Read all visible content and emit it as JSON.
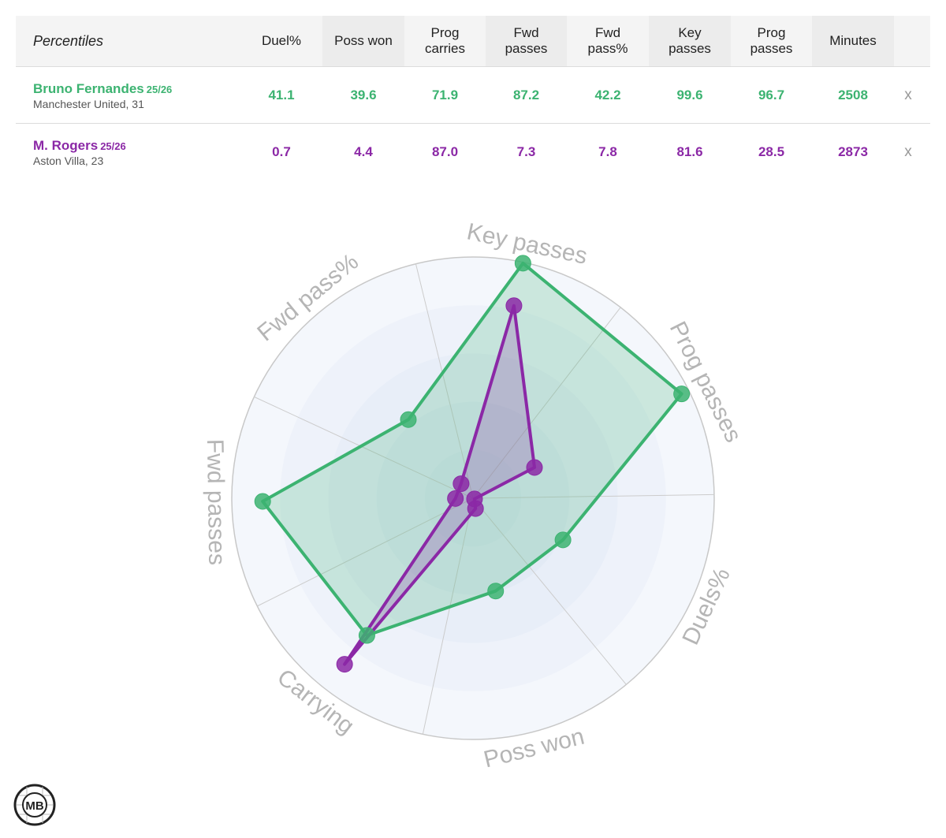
{
  "table": {
    "title": "Percentiles",
    "columns": [
      {
        "key": "duel",
        "lines": [
          "Duel%"
        ]
      },
      {
        "key": "poss_won",
        "lines": [
          "Poss won"
        ]
      },
      {
        "key": "prog_carries",
        "lines": [
          "Prog",
          "carries"
        ]
      },
      {
        "key": "fwd_passes",
        "lines": [
          "Fwd",
          "passes"
        ]
      },
      {
        "key": "fwd_pass_pct",
        "lines": [
          "Fwd",
          "pass%"
        ]
      },
      {
        "key": "key_passes",
        "lines": [
          "Key",
          "passes"
        ]
      },
      {
        "key": "prog_passes",
        "lines": [
          "Prog",
          "passes"
        ]
      },
      {
        "key": "minutes",
        "lines": [
          "Minutes"
        ]
      }
    ],
    "remove_label": "x",
    "players": [
      {
        "name": "Bruno Fernandes",
        "season": "25/26",
        "club_age": "Manchester United, 31",
        "color": "#3cb371",
        "values": [
          "41.1",
          "39.6",
          "71.9",
          "87.2",
          "42.2",
          "99.6",
          "96.7",
          "2508"
        ]
      },
      {
        "name": "M. Rogers",
        "season": "25/26",
        "club_age": "Aston Villa, 23",
        "color": "#8b28a6",
        "values": [
          "0.7",
          "4.4",
          "87.0",
          "7.3",
          "7.8",
          "81.6",
          "28.5",
          "2873"
        ]
      }
    ]
  },
  "chart_data": {
    "type": "radar",
    "axes": [
      "Key passes",
      "Prog passes",
      "Duels%",
      "Poss won",
      "Carrying",
      "Fwd passes",
      "Fwd pass%"
    ],
    "range": [
      0,
      100
    ],
    "grid": true,
    "series": [
      {
        "name": "Bruno Fernandes",
        "color": "#3cb371",
        "values": [
          99.6,
          96.7,
          41.1,
          39.6,
          71.9,
          87.2,
          42.2
        ]
      },
      {
        "name": "M. Rogers",
        "color": "#8b28a6",
        "values": [
          81.6,
          28.5,
          0.7,
          4.4,
          87.0,
          7.3,
          7.8
        ]
      }
    ]
  },
  "logo": {
    "text": "MB"
  }
}
